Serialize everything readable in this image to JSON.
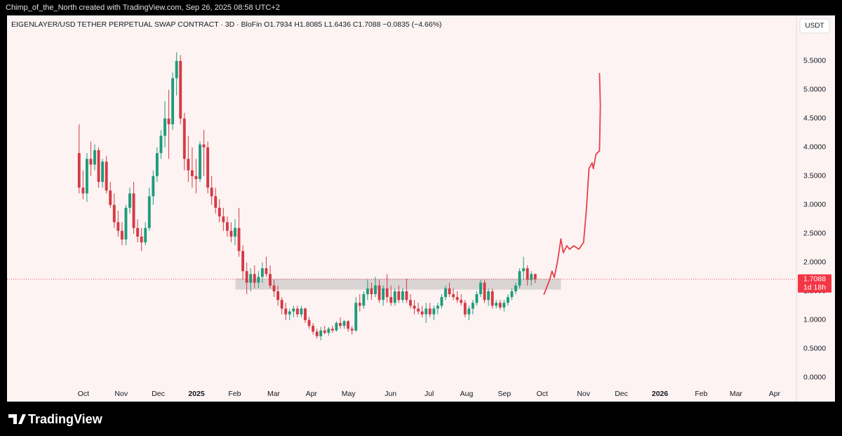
{
  "top_bar": {
    "text": "Chimp_of_the_North created with TradingView.com, Sep 26, 2025 08:58 UTC+2"
  },
  "footer": {
    "logo": "TradingView"
  },
  "chart_data": {
    "type": "candlestick",
    "title": "EIGENLAYER/USD TETHER PERPETUAL SWAP CONTRACT · 3D · BloFin  O1.7934  H1.8085  L1.6436  C1.7088  −0.0835 (−4.66%)",
    "currency": "USDT",
    "up_color": "#1e9c7a",
    "down_color": "#d43a45",
    "candles": [
      [
        3.9,
        4.4,
        3.2,
        3.3
      ],
      [
        3.3,
        3.6,
        3.1,
        3.2
      ],
      [
        3.2,
        3.9,
        3.05,
        3.8
      ],
      [
        3.8,
        4.1,
        3.5,
        3.7
      ],
      [
        3.7,
        4.05,
        3.6,
        3.95
      ],
      [
        3.95,
        4.0,
        3.3,
        3.4
      ],
      [
        3.4,
        3.8,
        3.3,
        3.75
      ],
      [
        3.75,
        3.85,
        3.2,
        3.25
      ],
      [
        3.25,
        3.4,
        2.95,
        3.0
      ],
      [
        3.0,
        3.2,
        2.6,
        2.7
      ],
      [
        2.7,
        2.9,
        2.45,
        2.55
      ],
      [
        2.55,
        2.7,
        2.3,
        2.4
      ],
      [
        2.4,
        3.0,
        2.3,
        2.95
      ],
      [
        2.95,
        3.3,
        2.85,
        3.2
      ],
      [
        3.2,
        3.4,
        2.5,
        2.6
      ],
      [
        2.6,
        2.75,
        2.35,
        2.45
      ],
      [
        2.45,
        2.6,
        2.2,
        2.35
      ],
      [
        2.35,
        2.7,
        2.3,
        2.6
      ],
      [
        2.6,
        3.3,
        2.55,
        3.15
      ],
      [
        3.15,
        3.6,
        3.0,
        3.5
      ],
      [
        3.5,
        4.0,
        3.4,
        3.9
      ],
      [
        3.9,
        4.3,
        3.8,
        4.2
      ],
      [
        4.2,
        4.8,
        4.0,
        4.5
      ],
      [
        4.5,
        5.0,
        3.8,
        4.4
      ],
      [
        4.4,
        5.3,
        4.3,
        5.2
      ],
      [
        5.2,
        5.65,
        4.9,
        5.5
      ],
      [
        5.5,
        5.6,
        4.4,
        4.5
      ],
      [
        4.5,
        4.6,
        3.6,
        3.8
      ],
      [
        3.8,
        4.2,
        3.4,
        3.6
      ],
      [
        3.6,
        4.0,
        3.3,
        3.5
      ],
      [
        3.5,
        3.8,
        3.2,
        3.45
      ],
      [
        3.45,
        4.1,
        3.4,
        4.05
      ],
      [
        4.05,
        4.3,
        3.5,
        4.0
      ],
      [
        4.0,
        4.1,
        3.2,
        3.3
      ],
      [
        3.3,
        3.5,
        3.0,
        3.15
      ],
      [
        3.15,
        3.3,
        2.85,
        2.95
      ],
      [
        2.95,
        3.1,
        2.7,
        2.8
      ],
      [
        2.8,
        2.95,
        2.55,
        2.7
      ],
      [
        2.7,
        2.8,
        2.45,
        2.55
      ],
      [
        2.55,
        2.7,
        2.35,
        2.45
      ],
      [
        2.45,
        2.75,
        2.3,
        2.6
      ],
      [
        2.6,
        2.95,
        2.1,
        2.2
      ],
      [
        2.2,
        2.3,
        1.7,
        1.85
      ],
      [
        1.85,
        2.0,
        1.45,
        1.65
      ],
      [
        1.65,
        1.9,
        1.5,
        1.8
      ],
      [
        1.8,
        1.95,
        1.55,
        1.65
      ],
      [
        1.65,
        1.85,
        1.55,
        1.75
      ],
      [
        1.75,
        2.0,
        1.65,
        1.9
      ],
      [
        1.9,
        2.1,
        1.75,
        1.8
      ],
      [
        1.8,
        1.95,
        1.55,
        1.6
      ],
      [
        1.6,
        1.7,
        1.4,
        1.5
      ],
      [
        1.5,
        1.6,
        1.25,
        1.35
      ],
      [
        1.35,
        1.4,
        1.1,
        1.2
      ],
      [
        1.2,
        1.3,
        1.0,
        1.1
      ],
      [
        1.1,
        1.2,
        1.0,
        1.15
      ],
      [
        1.15,
        1.25,
        1.05,
        1.2
      ],
      [
        1.2,
        1.25,
        1.05,
        1.1
      ],
      [
        1.1,
        1.25,
        1.05,
        1.2
      ],
      [
        1.2,
        1.22,
        0.95,
        1.0
      ],
      [
        1.0,
        1.05,
        0.85,
        0.9
      ],
      [
        0.9,
        0.95,
        0.75,
        0.8
      ],
      [
        0.8,
        0.85,
        0.68,
        0.72
      ],
      [
        0.72,
        0.88,
        0.65,
        0.82
      ],
      [
        0.82,
        0.9,
        0.75,
        0.78
      ],
      [
        0.78,
        0.88,
        0.73,
        0.85
      ],
      [
        0.85,
        0.9,
        0.78,
        0.82
      ],
      [
        0.82,
        0.98,
        0.8,
        0.95
      ],
      [
        0.95,
        1.05,
        0.85,
        0.9
      ],
      [
        0.9,
        1.0,
        0.85,
        0.98
      ],
      [
        0.98,
        1.0,
        0.8,
        0.85
      ],
      [
        0.85,
        0.9,
        0.75,
        0.82
      ],
      [
        0.82,
        1.4,
        0.8,
        1.3
      ],
      [
        1.3,
        1.45,
        1.15,
        1.25
      ],
      [
        1.25,
        1.5,
        1.2,
        1.45
      ],
      [
        1.45,
        1.7,
        1.35,
        1.55
      ],
      [
        1.55,
        1.65,
        1.35,
        1.45
      ],
      [
        1.45,
        1.75,
        1.4,
        1.6
      ],
      [
        1.6,
        1.7,
        1.3,
        1.35
      ],
      [
        1.35,
        1.6,
        1.25,
        1.55
      ],
      [
        1.55,
        1.8,
        1.3,
        1.4
      ],
      [
        1.4,
        1.6,
        1.25,
        1.3
      ],
      [
        1.3,
        1.55,
        1.25,
        1.5
      ],
      [
        1.5,
        1.6,
        1.3,
        1.35
      ],
      [
        1.35,
        1.55,
        1.3,
        1.5
      ],
      [
        1.5,
        1.72,
        1.3,
        1.35
      ],
      [
        1.35,
        1.45,
        1.2,
        1.25
      ],
      [
        1.25,
        1.35,
        1.1,
        1.2
      ],
      [
        1.2,
        1.3,
        1.1,
        1.15
      ],
      [
        1.15,
        1.25,
        1.05,
        1.1
      ],
      [
        1.1,
        1.3,
        0.95,
        1.2
      ],
      [
        1.2,
        1.3,
        1.05,
        1.1
      ],
      [
        1.1,
        1.25,
        1.0,
        1.2
      ],
      [
        1.2,
        1.3,
        1.1,
        1.25
      ],
      [
        1.25,
        1.45,
        1.2,
        1.4
      ],
      [
        1.4,
        1.6,
        1.35,
        1.55
      ],
      [
        1.55,
        1.65,
        1.4,
        1.45
      ],
      [
        1.45,
        1.55,
        1.35,
        1.4
      ],
      [
        1.4,
        1.5,
        1.3,
        1.35
      ],
      [
        1.35,
        1.45,
        1.25,
        1.3
      ],
      [
        1.3,
        1.35,
        1.05,
        1.1
      ],
      [
        1.1,
        1.25,
        1.0,
        1.2
      ],
      [
        1.2,
        1.35,
        1.1,
        1.3
      ],
      [
        1.3,
        1.5,
        1.25,
        1.45
      ],
      [
        1.45,
        1.7,
        1.4,
        1.65
      ],
      [
        1.65,
        1.7,
        1.3,
        1.35
      ],
      [
        1.35,
        1.55,
        1.25,
        1.5
      ],
      [
        1.5,
        1.55,
        1.2,
        1.25
      ],
      [
        1.25,
        1.35,
        1.2,
        1.3
      ],
      [
        1.3,
        1.35,
        1.18,
        1.22
      ],
      [
        1.22,
        1.35,
        1.15,
        1.3
      ],
      [
        1.3,
        1.45,
        1.25,
        1.4
      ],
      [
        1.4,
        1.55,
        1.35,
        1.5
      ],
      [
        1.5,
        1.65,
        1.45,
        1.6
      ],
      [
        1.6,
        1.9,
        1.55,
        1.85
      ],
      [
        1.85,
        2.1,
        1.7,
        1.9
      ],
      [
        1.9,
        1.95,
        1.6,
        1.7
      ],
      [
        1.7,
        1.85,
        1.6,
        1.8
      ],
      [
        1.8,
        1.8085,
        1.6436,
        1.7088
      ]
    ],
    "zone": {
      "x": [
        40.1,
        123.6
      ],
      "y": [
        1.53,
        1.72
      ],
      "color": "#d6d0d0"
    },
    "projection": {
      "color": "#e8404a",
      "x": [
        119.2,
        120.6,
        121.3,
        121.9,
        122.8,
        123.6,
        124.2,
        125.1,
        125.8,
        126.9,
        128.2,
        129.4,
        130.1,
        130.8,
        131.6,
        131.9,
        132.6,
        133.5,
        133.7,
        133.5
      ],
      "y": [
        1.44,
        1.68,
        1.85,
        1.74,
        2.05,
        2.41,
        2.17,
        2.29,
        2.23,
        2.29,
        2.23,
        2.35,
        2.9,
        3.63,
        3.73,
        3.63,
        3.88,
        3.94,
        4.73,
        5.29
      ]
    },
    "last_price": {
      "value": 1.7088,
      "label": "1.7088",
      "countdown": "1d 18h",
      "color": "#f23645"
    },
    "xlim": [
      -18.5,
      184
    ],
    "xticks": [
      {
        "value": 1.1,
        "label": "Oct"
      },
      {
        "value": 10.8,
        "label": "Nov"
      },
      {
        "value": 20.3,
        "label": "Dec"
      },
      {
        "value": 30.1,
        "label": "2025"
      },
      {
        "value": 39.9,
        "label": "Feb"
      },
      {
        "value": 49.9,
        "label": "Mar"
      },
      {
        "value": 59.6,
        "label": "Apr"
      },
      {
        "value": 69.1,
        "label": "May"
      },
      {
        "value": 79.9,
        "label": "Jun"
      },
      {
        "value": 89.8,
        "label": "Jul"
      },
      {
        "value": 99.4,
        "label": "Aug"
      },
      {
        "value": 109.1,
        "label": "Sep"
      },
      {
        "value": 118.8,
        "label": "Oct"
      },
      {
        "value": 129.4,
        "label": "Nov"
      },
      {
        "value": 139.1,
        "label": "Dec"
      },
      {
        "value": 149.0,
        "label": "2026"
      },
      {
        "value": 159.6,
        "label": "Feb"
      },
      {
        "value": 168.5,
        "label": "Mar"
      },
      {
        "value": 178.4,
        "label": "Apr"
      }
    ],
    "ylim": [
      -0.415,
      6.29
    ],
    "yticks": [
      {
        "value": 0,
        "label": "0.0000"
      },
      {
        "value": 0.5,
        "label": "0.5000"
      },
      {
        "value": 1,
        "label": "1.0000"
      },
      {
        "value": 1.5,
        "label": "1.5000"
      },
      {
        "value": 2,
        "label": "2.0000"
      },
      {
        "value": 2.5,
        "label": "2.5000"
      },
      {
        "value": 3,
        "label": "3.0000"
      },
      {
        "value": 3.5,
        "label": "3.5000"
      },
      {
        "value": 4,
        "label": "4.0000"
      },
      {
        "value": 4.5,
        "label": "4.5000"
      },
      {
        "value": 5,
        "label": "5.0000"
      },
      {
        "value": 5.5,
        "label": "5.5000"
      }
    ]
  }
}
